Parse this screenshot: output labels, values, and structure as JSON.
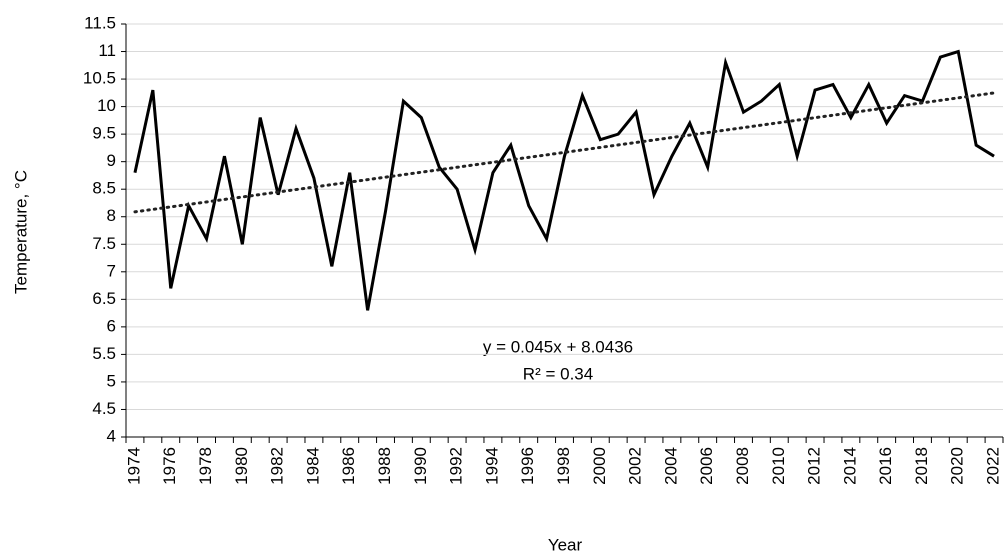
{
  "chart_data": {
    "type": "line",
    "x_label": "Year",
    "y_label": "Temperature, °C",
    "categories": [
      "1974",
      null,
      "1976",
      null,
      "1978",
      null,
      "1980",
      null,
      "1982",
      null,
      "1984",
      null,
      "1986",
      null,
      "1988",
      null,
      "1990",
      null,
      "1992",
      null,
      "1994",
      null,
      "1996",
      null,
      "1998",
      null,
      "2000",
      null,
      "2002",
      null,
      "2004",
      null,
      "2006",
      null,
      "2008",
      null,
      "2010",
      null,
      "2012",
      null,
      "2014",
      null,
      "2016",
      null,
      "2018",
      null,
      "2020",
      null,
      "2022"
    ],
    "series": [
      {
        "color": "#000000",
        "values": [
          8.8,
          10.3,
          6.7,
          8.2,
          7.6,
          9.1,
          7.5,
          9.8,
          8.4,
          9.6,
          8.7,
          7.1,
          8.8,
          6.3,
          8.1,
          10.1,
          9.8,
          8.9,
          8.5,
          7.4,
          8.8,
          9.3,
          8.2,
          7.6,
          9.1,
          10.2,
          9.4,
          9.5,
          9.9,
          8.4,
          9.1,
          9.7,
          8.9,
          10.8,
          9.9,
          10.1,
          10.4,
          9.1,
          10.3,
          10.4,
          9.8,
          10.4,
          9.7,
          10.2,
          10.1,
          10.9,
          11.0,
          9.3,
          9.1
        ]
      }
    ],
    "trendline": {
      "slope": 0.045,
      "intercept": 8.0436,
      "color": "#222222",
      "equation": "y = 0.045x + 8.0436",
      "r_squared": "R² = 0.34"
    },
    "ylim": [
      4,
      11.5
    ],
    "yticks": [
      4,
      4.5,
      5,
      5.5,
      6,
      6.5,
      7,
      7.5,
      8,
      8.5,
      9,
      9.5,
      10,
      10.5,
      11,
      11.5
    ],
    "grid": true
  }
}
